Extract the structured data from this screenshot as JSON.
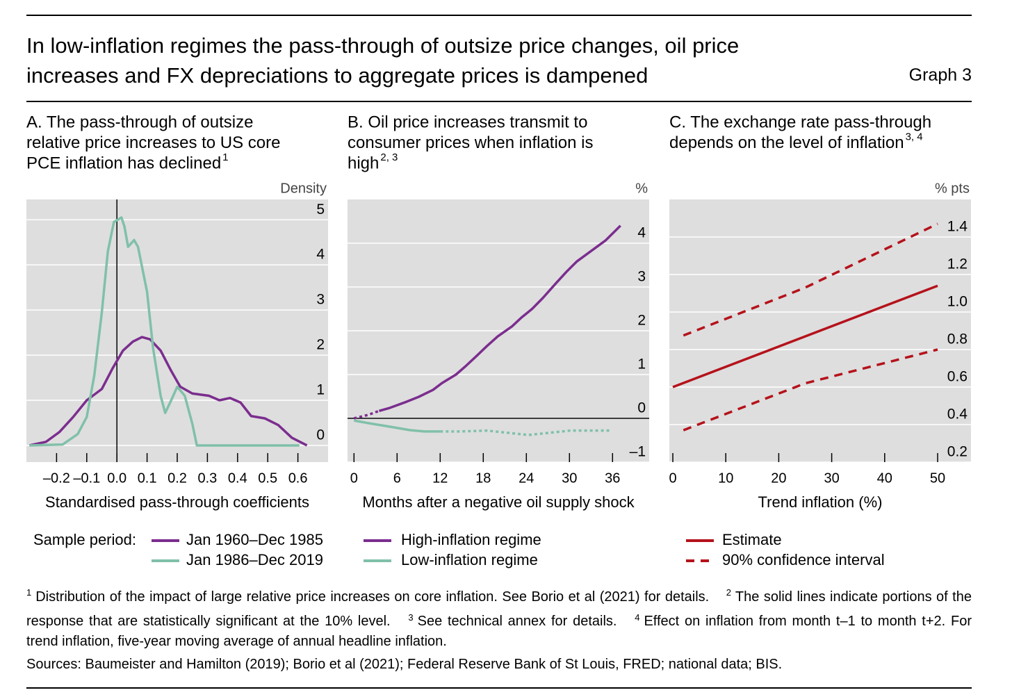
{
  "header": {
    "title": [
      "In low-inflation regimes the pass-through of outsize price changes, oil price",
      "increases and FX depreciations to aggregate prices is dampened"
    ],
    "graph_label": "Graph 3"
  },
  "chart_data": [
    {
      "type": "line",
      "title": [
        "A. The pass-through of outsize",
        "relative price increases to US core",
        "PCE inflation has declined"
      ],
      "title_note": "1",
      "y_unit_label": "Density",
      "xlabel": "Standardised pass-through coefficients",
      "zero_line": "x",
      "xlim": [
        -0.3,
        0.7
      ],
      "xticks": [
        {
          "value": -0.2,
          "label": "–0.2"
        },
        {
          "value": -0.1,
          "label": "–0.1"
        },
        {
          "value": 0,
          "label": "0.0"
        },
        0.1,
        0.2,
        0.3,
        0.4,
        0.5,
        0.6
      ],
      "ylim": [
        -0.37,
        5.45
      ],
      "yticks": [
        0,
        1,
        2,
        3,
        4,
        5
      ],
      "grid": true,
      "legend_label": "Sample period:",
      "series": [
        {
          "name": "Jan 1960–Dec 1985",
          "color": "#7b2d8e",
          "x": [
            -0.29,
            -0.235,
            -0.19,
            -0.145,
            -0.1,
            -0.05,
            -0.015,
            0.02,
            0.053,
            0.083,
            0.11,
            0.145,
            0.18,
            0.21,
            0.25,
            0.305,
            0.34,
            0.375,
            0.41,
            0.445,
            0.49,
            0.535,
            0.58,
            0.63
          ],
          "values": [
            0,
            0.08,
            0.3,
            0.63,
            1.0,
            1.25,
            1.7,
            2.1,
            2.3,
            2.4,
            2.35,
            2.1,
            1.65,
            1.3,
            1.15,
            1.1,
            1.0,
            1.05,
            0.95,
            0.65,
            0.6,
            0.45,
            0.17,
            0
          ]
        },
        {
          "name": "Jan 1986–Dec 2019",
          "color": "#80c0a9",
          "x": [
            -0.29,
            -0.18,
            -0.13,
            -0.1,
            -0.075,
            -0.05,
            -0.03,
            -0.01,
            0.015,
            0.025,
            0.037,
            0.057,
            0.07,
            0.1,
            0.12,
            0.145,
            0.16,
            0.18,
            0.2,
            0.225,
            0.25,
            0.265,
            0.605
          ],
          "values": [
            0,
            0.02,
            0.25,
            0.63,
            1.55,
            2.95,
            4.3,
            4.95,
            5.05,
            4.85,
            4.4,
            4.55,
            4.4,
            3.4,
            2.15,
            1.1,
            0.72,
            1.0,
            1.3,
            1.1,
            0.48,
            0,
            0
          ]
        }
      ]
    },
    {
      "type": "line",
      "title": [
        "B. Oil price increases transmit to",
        "consumer prices when inflation is",
        "high"
      ],
      "title_note": "2, 3",
      "y_unit_label": "%",
      "xlabel": "Months after a negative oil supply shock",
      "zero_line": "y",
      "xlim": [
        -0.9,
        41.1
      ],
      "xticks": [
        0,
        6,
        12,
        18,
        24,
        30,
        36
      ],
      "ylim": [
        -1,
        5
      ],
      "yticks": [
        {
          "value": -1,
          "label": "–1"
        },
        0,
        1,
        2,
        3,
        4
      ],
      "grid": true,
      "series": [
        {
          "name": "High-inflation regime",
          "color": "#7b2d8e",
          "x": [
            0,
            2,
            3.5,
            5,
            7,
            9,
            11,
            12.2,
            14.2,
            15.6,
            17.1,
            18.5,
            20,
            22,
            23.3,
            24.8,
            26.3,
            28.2,
            29.6,
            31,
            33,
            35,
            37.1
          ],
          "values": [
            0,
            0.08,
            0.17,
            0.24,
            0.36,
            0.49,
            0.65,
            0.8,
            1.0,
            1.2,
            1.43,
            1.65,
            1.87,
            2.1,
            2.3,
            2.5,
            2.75,
            3.1,
            3.35,
            3.58,
            3.82,
            4.06,
            4.4
          ],
          "significant": [
            false,
            false,
            true,
            true,
            true,
            true,
            true,
            true,
            true,
            true,
            true,
            true,
            true,
            true,
            true,
            true,
            true,
            true,
            true,
            true,
            true,
            true,
            true
          ]
        },
        {
          "name": "Low-inflation regime",
          "color": "#80c0a9",
          "x": [
            0,
            2,
            5,
            7.8,
            9.8,
            12,
            14.6,
            18.5,
            21.4,
            24.3,
            27.2,
            30.1,
            33,
            35.9
          ],
          "values": [
            -0.05,
            -0.11,
            -0.19,
            -0.27,
            -0.3,
            -0.3,
            -0.3,
            -0.28,
            -0.33,
            -0.38,
            -0.33,
            -0.28,
            -0.28,
            -0.28
          ],
          "significant": [
            true,
            true,
            true,
            true,
            true,
            true,
            false,
            false,
            false,
            false,
            false,
            false,
            false,
            false
          ]
        }
      ]
    },
    {
      "type": "line",
      "title": [
        "C. The exchange rate pass-through",
        "depends on the level of inflation"
      ],
      "title_note": "3, 4",
      "y_unit_label": "% pts",
      "xlabel": "Trend inflation (%)",
      "xlim": [
        -0.66,
        56.3
      ],
      "xticks": [
        0,
        10,
        20,
        30,
        40,
        50
      ],
      "ylim": [
        0.2,
        1.6
      ],
      "yticks": [
        0.2,
        0.4,
        0.6,
        0.8,
        {
          "value": 1,
          "label": "1.0"
        },
        1.2,
        1.4
      ],
      "grid": true,
      "series": [
        {
          "name": "Estimate",
          "color": "#b5121b",
          "x": [
            0,
            50
          ],
          "values": [
            0.6,
            1.14
          ]
        },
        {
          "name": "90% confidence interval",
          "color": "#b5121b",
          "style": "dashed",
          "x": [
            2,
            25,
            50
          ],
          "upper": [
            0.875,
            1.13,
            1.47
          ],
          "lower": [
            0.37,
            0.62,
            0.8
          ]
        }
      ]
    }
  ],
  "footnotes": [
    {
      "mark": "1",
      "text": "Distribution of the impact of large relative price increases on core inflation. See Borio et al (2021) for details."
    },
    {
      "mark": "2",
      "text": "The solid lines indicate portions of the response that are statistically significant at the 10% level."
    },
    {
      "mark": "3",
      "text": "See technical annex for details."
    },
    {
      "mark": "4",
      "text": "Effect on inflation from month t–1 to month t+2. For trend inflation, five-year moving average of annual headline inflation."
    }
  ],
  "sources": "Sources: Baumeister and Hamilton (2019); Borio et al (2021); Federal Reserve Bank of St Louis, FRED; national data; BIS."
}
